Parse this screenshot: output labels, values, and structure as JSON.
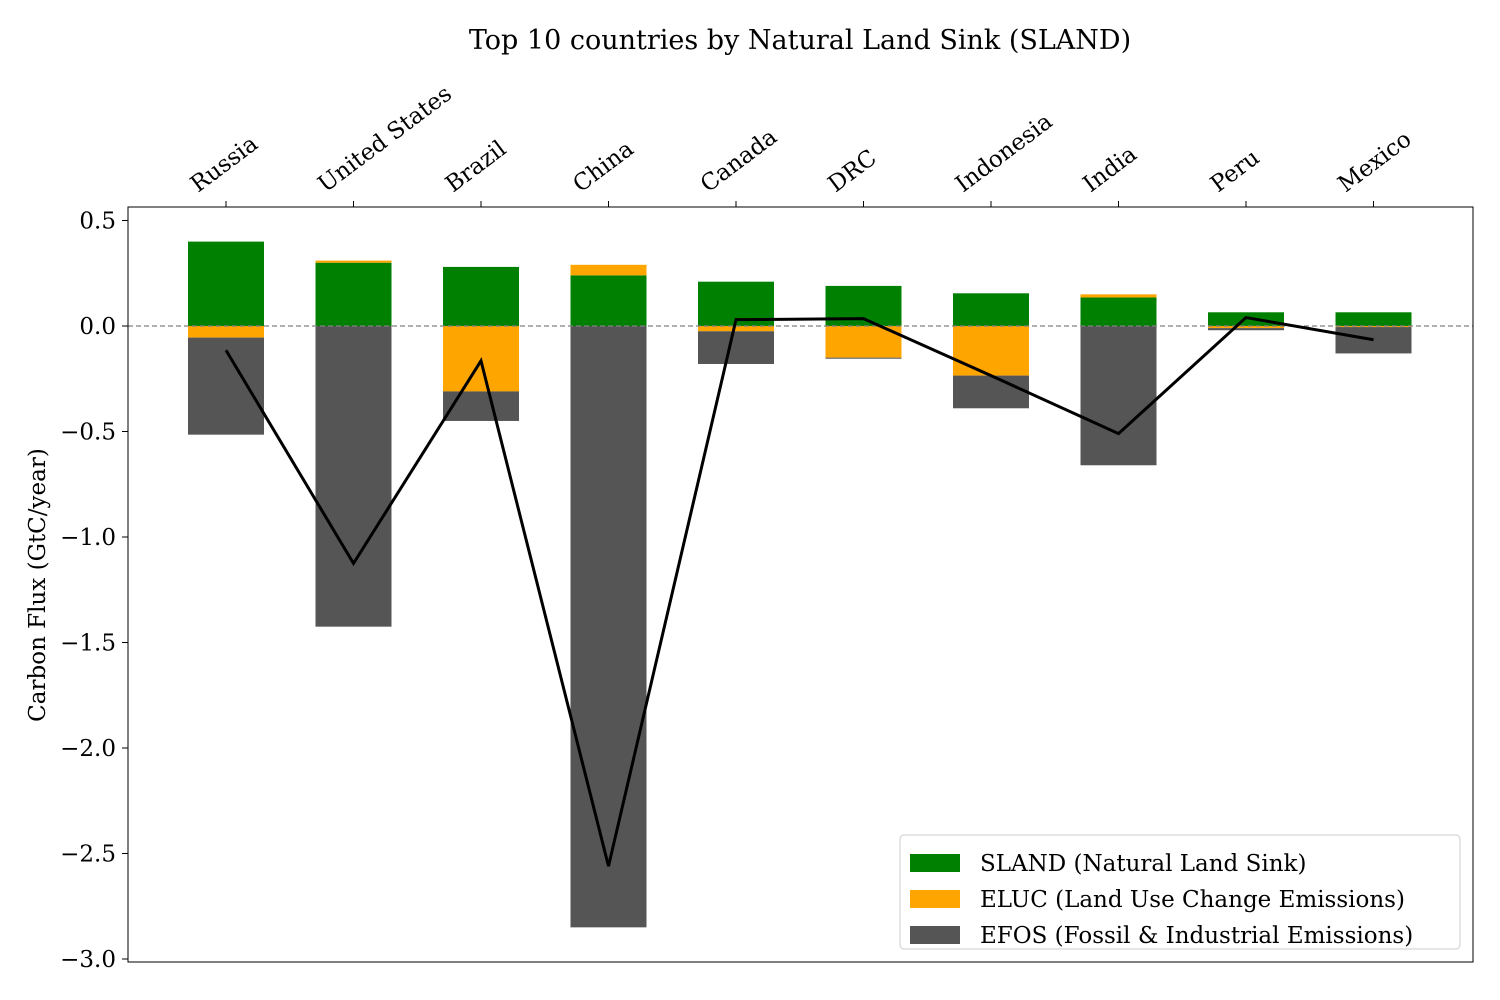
{
  "chart_data": {
    "type": "bar",
    "stacked": true,
    "title": "Top 10 countries by Natural Land Sink (SLAND)",
    "xlabel": "",
    "ylabel": "Carbon Flux (GtC/year)",
    "x_tick_position": "top",
    "categories": [
      "Russia",
      "United States",
      "Brazil",
      "China",
      "Canada",
      "DRC",
      "Indonesia",
      "India",
      "Peru",
      "Mexico"
    ],
    "ylim": [
      -3.0,
      0.55
    ],
    "yticks": [
      0.5,
      0.0,
      -0.5,
      -1.0,
      -1.5,
      -2.0,
      -2.5,
      -3.0
    ],
    "ytick_labels": [
      "0.5",
      "0.0",
      "−0.5",
      "−1.0",
      "−1.5",
      "−2.0",
      "−2.5",
      "−3.0"
    ],
    "zero_line": {
      "value": 0.0,
      "style": "dashed",
      "color": "#808080"
    },
    "legend_position": "lower-right",
    "series": [
      {
        "name": "SLAND (Natural Land Sink)",
        "color": "#008000",
        "values": [
          0.4,
          0.3,
          0.28,
          0.24,
          0.21,
          0.19,
          0.155,
          0.135,
          0.065,
          0.065
        ]
      },
      {
        "name": "ELUC (Land Use Change Emissions)",
        "color": "#FFA500",
        "values": [
          -0.055,
          0.01,
          -0.31,
          0.05,
          -0.025,
          -0.15,
          -0.235,
          0.015,
          -0.01,
          -0.005
        ]
      },
      {
        "name": "EFOS (Fossil & Industrial Emissions)",
        "color": "#555555",
        "values": [
          -0.46,
          -1.425,
          -0.14,
          -2.85,
          -0.155,
          -0.005,
          -0.155,
          -0.66,
          -0.01,
          -0.125
        ]
      }
    ],
    "net_line": {
      "color": "#000000",
      "values": [
        -0.115,
        -1.125,
        -0.165,
        -2.56,
        0.03,
        0.035,
        -0.235,
        -0.51,
        0.04,
        -0.065
      ]
    }
  }
}
